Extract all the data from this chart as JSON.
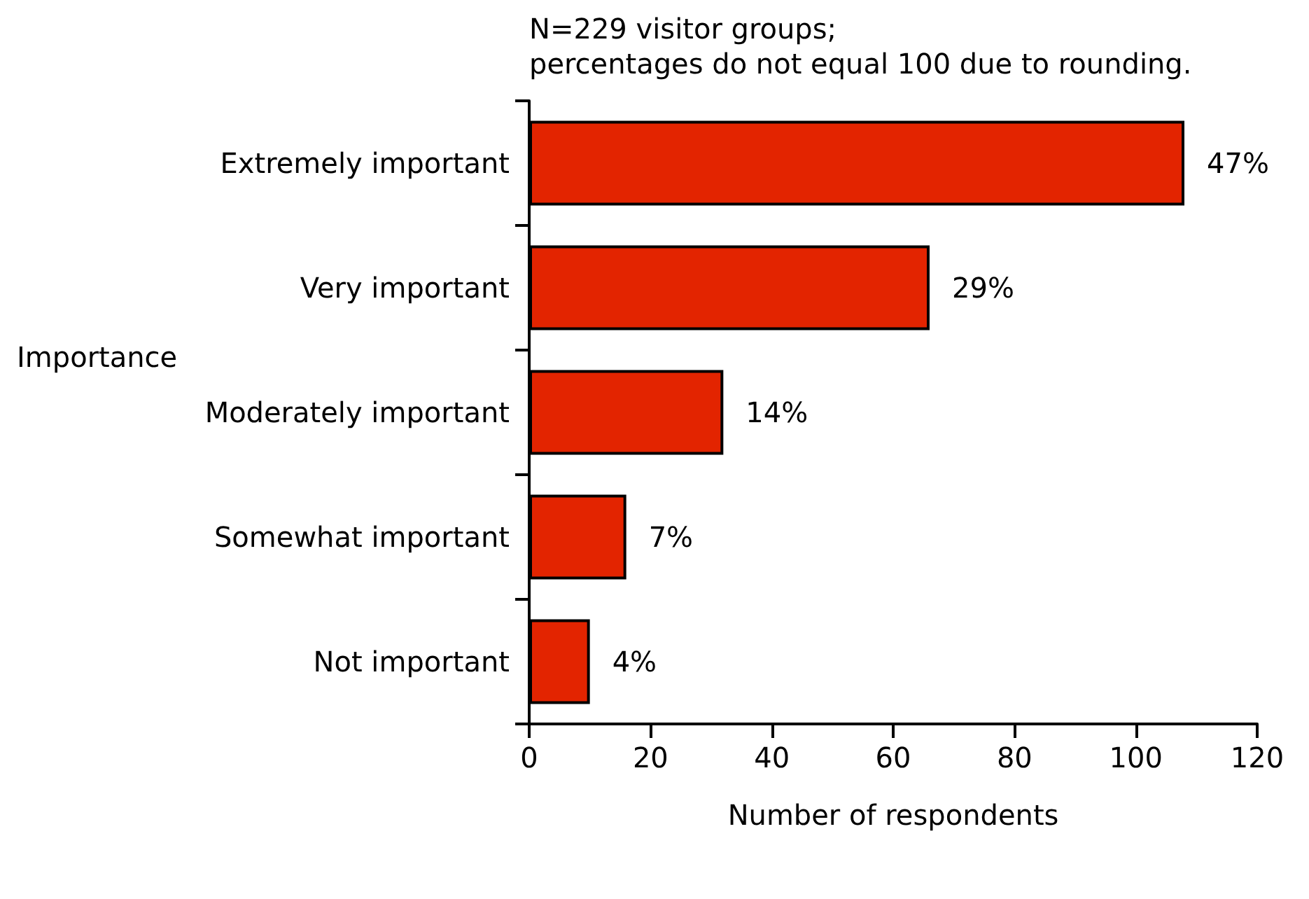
{
  "chart_data": {
    "type": "bar",
    "orientation": "horizontal",
    "xlabel": "Number of respondents",
    "ylabel": "Importance",
    "annotations": [
      "N=229 visitor groups;\npercentages do not equal 100 due to rounding.",
      {
        "text": "47%",
        "x": 108,
        "y": "Extremely important"
      },
      {
        "text": "29%",
        "x": 66,
        "y": "Very important"
      },
      {
        "text": "14%",
        "x": 32,
        "y": "Moderately important"
      },
      {
        "text": "7%",
        "x": 16,
        "y": "Somewhat important"
      },
      {
        "text": "4%",
        "x": 10,
        "y": "Not important"
      }
    ],
    "categories": [
      "Extremely important",
      "Very important",
      "Moderately important",
      "Somewhat important",
      "Not important"
    ],
    "values": [
      108,
      66,
      32,
      16,
      10
    ],
    "color": "#e32400",
    "xlim": [
      0,
      120
    ],
    "xticks": [
      0,
      20,
      40,
      60,
      80,
      100,
      120
    ],
    "grid": false
  }
}
